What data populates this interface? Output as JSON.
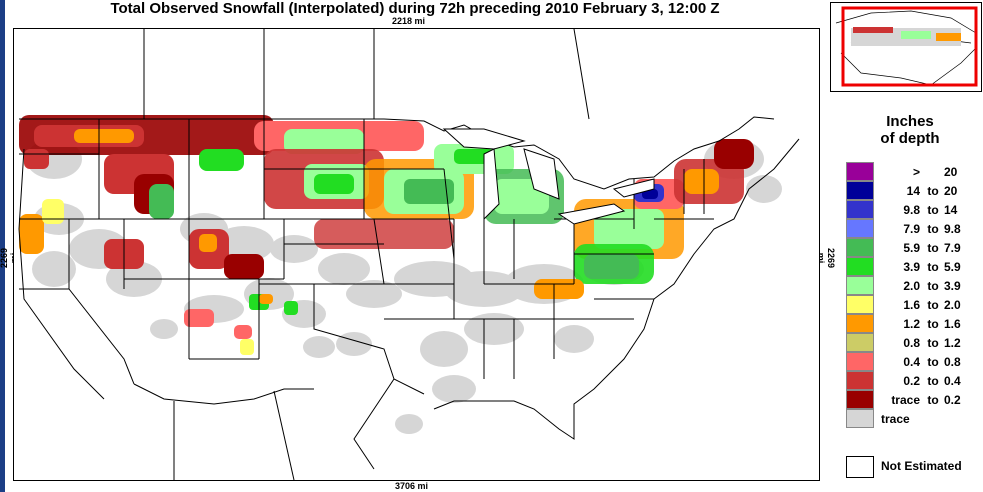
{
  "title": "Total Observed Snowfall (Interpolated) during 72h preceding 2010 February 3, 12:00 Z",
  "distances": {
    "top": "2218 mi",
    "bottom": "3706 mi",
    "left": "2269 mi",
    "right": "2269 mi"
  },
  "legend": {
    "title_line1": "Inches",
    "title_line2": "of depth",
    "items": [
      {
        "color": "#990099",
        "low": ">",
        "to": "",
        "high": "20"
      },
      {
        "color": "#000099",
        "low": "14",
        "to": "to",
        "high": "20"
      },
      {
        "color": "#3333cc",
        "low": "9.8",
        "to": "to",
        "high": "14"
      },
      {
        "color": "#6677ff",
        "low": "7.9",
        "to": "to",
        "high": "9.8"
      },
      {
        "color": "#44bb55",
        "low": "5.9",
        "to": "to",
        "high": "7.9"
      },
      {
        "color": "#22dd22",
        "low": "3.9",
        "to": "to",
        "high": "5.9"
      },
      {
        "color": "#99ff99",
        "low": "2.0",
        "to": "to",
        "high": "3.9"
      },
      {
        "color": "#ffff66",
        "low": "1.6",
        "to": "to",
        "high": "2.0"
      },
      {
        "color": "#ff9900",
        "low": "1.2",
        "to": "to",
        "high": "1.6"
      },
      {
        "color": "#cccc66",
        "low": "0.8",
        "to": "to",
        "high": "1.2"
      },
      {
        "color": "#ff6666",
        "low": "0.4",
        "to": "to",
        "high": "0.8"
      },
      {
        "color": "#cc3333",
        "low": "0.2",
        "to": "to",
        "high": "0.4"
      },
      {
        "color": "#990000",
        "low": "trace",
        "to": "to",
        "high": "0.2"
      }
    ],
    "trace": {
      "color": "#d6d6d6",
      "label": "trace"
    },
    "not_estimated": {
      "color": "#ffffff",
      "label": "Not Estimated"
    }
  },
  "colors": {
    "gray_trace": "#d6d6d6",
    "inset_box": "#ee0000",
    "border": "#000000",
    "left_bar": "#1c3e86"
  }
}
